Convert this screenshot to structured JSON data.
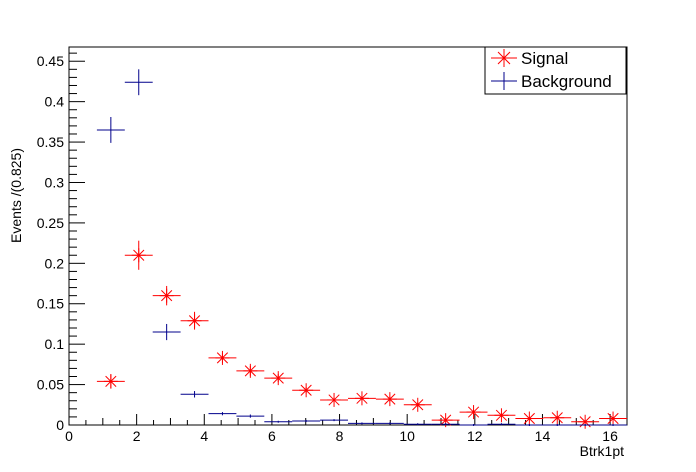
{
  "chart_data": {
    "type": "scatter",
    "xlabel": "Btrk1pt",
    "ylabel": "Events /(0.825)",
    "xlim": [
      0,
      16.5
    ],
    "ylim": [
      0,
      0.4676
    ],
    "xticks": [
      0,
      2,
      4,
      6,
      8,
      10,
      12,
      14,
      16
    ],
    "yticks": [
      0,
      0.05,
      0.1,
      0.15,
      0.2,
      0.25,
      0.3,
      0.35,
      0.4,
      0.45
    ],
    "xtick_labels": [
      "0",
      "2",
      "4",
      "6",
      "8",
      "10",
      "12",
      "14",
      "16"
    ],
    "ytick_labels": [
      "0",
      "0.05",
      "0.1",
      "0.15",
      "0.2",
      "0.25",
      "0.3",
      "0.35",
      "0.4",
      "0.45"
    ],
    "bin_half_width": 0.4125,
    "legend_position": "top-right",
    "grid": false,
    "series": [
      {
        "name": "Signal",
        "color": "#ff0000",
        "marker": "star",
        "x": [
          1.2375,
          2.0625,
          2.8875,
          3.7125,
          4.5375,
          5.3625,
          6.1875,
          7.0125,
          7.8375,
          8.6625,
          9.4875,
          10.3125,
          11.1375,
          11.9625,
          12.7875,
          13.6125,
          14.4375,
          15.2625,
          16.0875
        ],
        "y": [
          0.054,
          0.21,
          0.16,
          0.129,
          0.083,
          0.067,
          0.058,
          0.043,
          0.031,
          0.033,
          0.032,
          0.025,
          0.006,
          0.016,
          0.012,
          0.008,
          0.009,
          0.004,
          0.008
        ],
        "yerr": [
          0.009,
          0.018,
          0.012,
          0.011,
          0.006,
          0.006,
          0.005,
          0.004,
          0.003,
          0.003,
          0.003,
          0.003,
          0.002,
          0.003,
          0.002,
          0.002,
          0.002,
          0.001,
          0.002
        ]
      },
      {
        "name": "Background",
        "color": "#00008b",
        "marker": "cross",
        "x": [
          1.2375,
          2.0625,
          2.8875,
          3.7125,
          4.5375,
          5.3625,
          6.1875,
          7.0125,
          7.8375,
          8.6625,
          9.4875,
          10.3125,
          11.1375,
          11.9625,
          12.7875,
          13.6125,
          14.4375,
          15.2625,
          16.0875
        ],
        "y": [
          0.365,
          0.424,
          0.115,
          0.038,
          0.014,
          0.011,
          0.004,
          0.005,
          0.006,
          0.002,
          0.002,
          0.001,
          0.001,
          0.0,
          0.001,
          0.0,
          0.0,
          0.0,
          0.0
        ],
        "yerr": [
          0.016,
          0.016,
          0.01,
          0.004,
          0.002,
          0.002,
          0.001,
          0.001,
          0.001,
          0.001,
          0.001,
          0.001,
          0.001,
          0.0,
          0.001,
          0.0,
          0.0,
          0.0,
          0.0
        ]
      }
    ]
  }
}
